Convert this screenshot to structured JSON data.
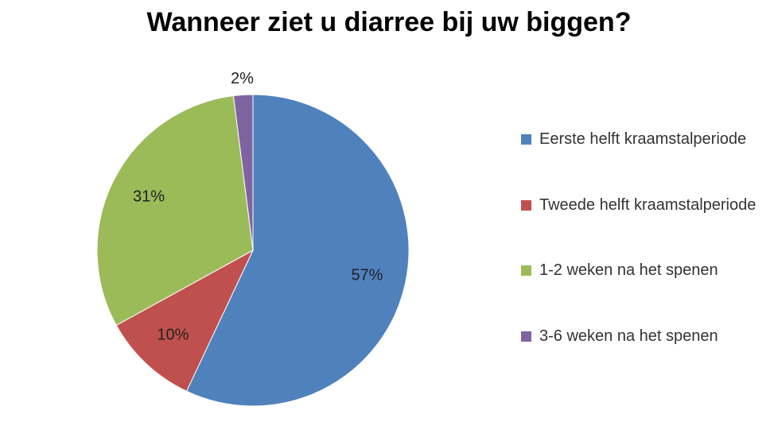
{
  "chart_data": {
    "type": "pie",
    "title": "Wanneer ziet u diarree bij uw biggen?",
    "categories": [
      "Eerste helft kraamstalperiode",
      "Tweede helft kraamstalperiode",
      "1-2 weken na het spenen",
      "3-6 weken na het spenen"
    ],
    "values": [
      57,
      10,
      31,
      2
    ],
    "value_labels": [
      "57%",
      "10%",
      "31%",
      "2%"
    ],
    "colors": [
      "#4f81bd",
      "#c0504d",
      "#9bbb59",
      "#8064a2"
    ],
    "legend": "right"
  }
}
